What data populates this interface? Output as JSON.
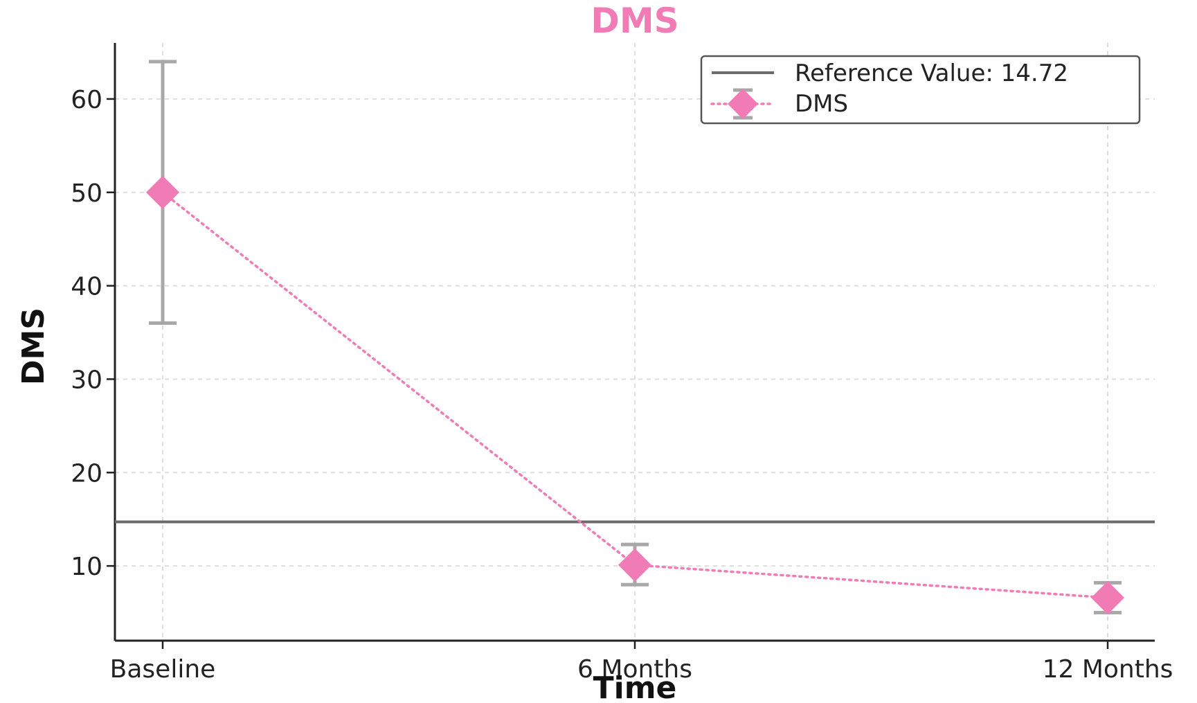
{
  "chart_data": {
    "type": "line",
    "title": "DMS",
    "xlabel": "Time",
    "ylabel": "DMS",
    "categories": [
      "Baseline",
      "6 Months",
      "12 Months"
    ],
    "ylim": [
      2,
      66
    ],
    "yticks": [
      10,
      20,
      30,
      40,
      50,
      60
    ],
    "grid": true,
    "legend_placement": "top-right",
    "reference_line": {
      "label": "Reference Value: 14.72",
      "value": 14.72,
      "color": "#6b6b6b"
    },
    "series": [
      {
        "name": "DMS",
        "values": [
          50.0,
          10.1,
          6.6
        ],
        "error_low": [
          36.0,
          8.0,
          5.0
        ],
        "error_high": [
          64.0,
          12.3,
          8.2
        ],
        "color": "#f07bb5",
        "error_color": "#a8a8a8",
        "line_style": "dotted",
        "marker": "diamond"
      }
    ]
  }
}
